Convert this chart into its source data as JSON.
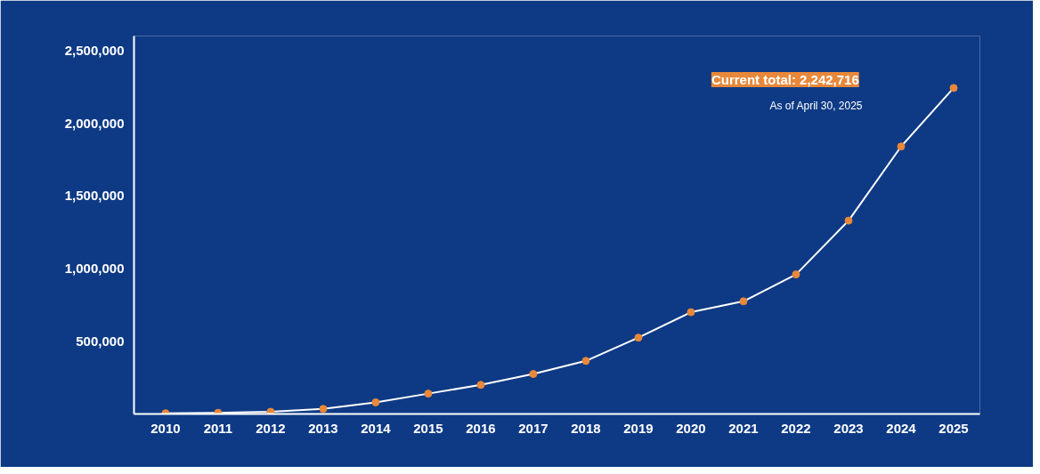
{
  "chart_data": {
    "type": "line",
    "categories": [
      "2010",
      "2011",
      "2012",
      "2013",
      "2014",
      "2015",
      "2016",
      "2017",
      "2018",
      "2019",
      "2020",
      "2021",
      "2022",
      "2023",
      "2024",
      "2025"
    ],
    "series": [
      {
        "color": "#ffffff",
        "values": [
          5000,
          8000,
          15000,
          35000,
          80000,
          140000,
          200000,
          275000,
          365000,
          525000,
          700000,
          775000,
          960000,
          1330000,
          1840000,
          2242716
        ]
      }
    ],
    "ylim": [
      0,
      2600000
    ],
    "yticks": [
      {
        "value": 500000,
        "label": "500,000"
      },
      {
        "value": 1000000,
        "label": "1,000,000"
      },
      {
        "value": 1500000,
        "label": "1,500,000"
      },
      {
        "value": 2000000,
        "label": "2,000,000"
      },
      {
        "value": 2500000,
        "label": "2,500,000"
      }
    ],
    "marker": "circle",
    "grid": false,
    "annotations": [
      "Current total: 2,242,716",
      "As of April 30, 2025"
    ]
  }
}
